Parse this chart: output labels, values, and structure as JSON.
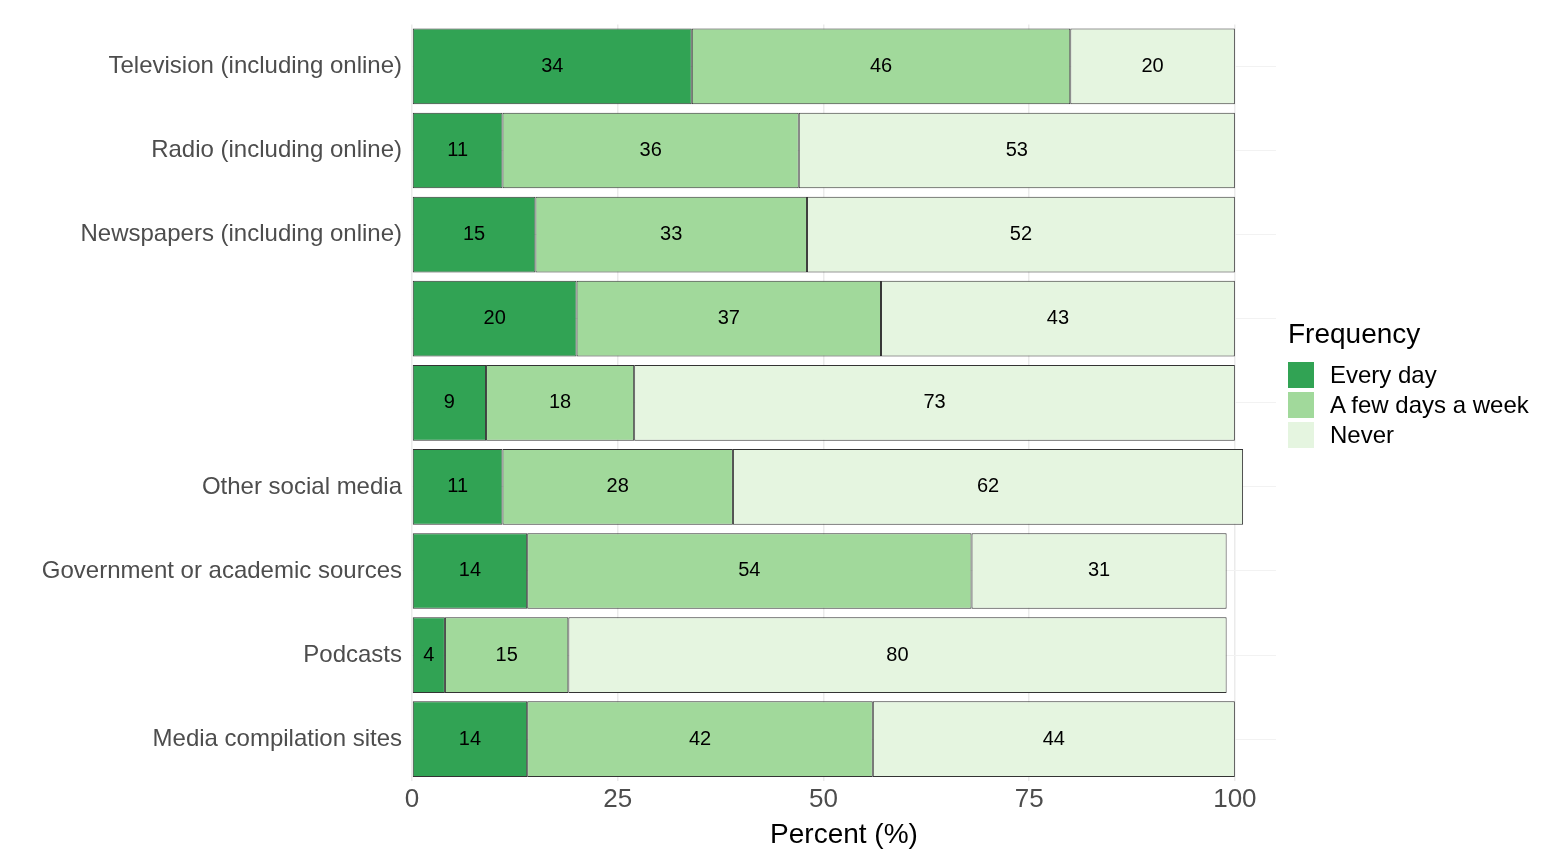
{
  "chart_data": {
    "type": "bar",
    "orientation": "horizontal",
    "stacked": true,
    "xlabel": "Percent (%)",
    "legend_title": "Frequency",
    "legend": "right",
    "grid": true,
    "data_labels": true,
    "categories": [
      "Television (including online)",
      "Radio (including online)",
      "Newspapers (including online)",
      null,
      null,
      "Other social media",
      "Government or academic sources",
      "Podcasts",
      "Media compilation sites"
    ],
    "xlim": [
      0,
      105
    ],
    "xticks": [
      0,
      25,
      50,
      75,
      100
    ],
    "series": [
      {
        "name": "Every day",
        "color": "#31a354",
        "values": [
          34,
          11,
          15,
          20,
          9,
          11,
          14,
          4,
          14
        ]
      },
      {
        "name": "A few days a week",
        "color": "#a1d99b",
        "values": [
          46,
          36,
          33,
          37,
          18,
          28,
          54,
          15,
          42
        ]
      },
      {
        "name": "Never",
        "color": "#e5f5e0",
        "values": [
          20,
          53,
          52,
          43,
          73,
          62,
          31,
          80,
          44
        ]
      }
    ]
  }
}
